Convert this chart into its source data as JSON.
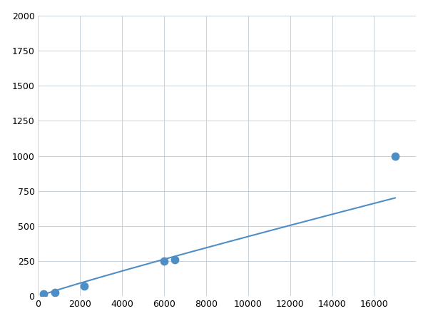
{
  "x": [
    250,
    800,
    2200,
    6000,
    6500,
    17000
  ],
  "y": [
    20,
    30,
    75,
    250,
    260,
    1000
  ],
  "line_color": "#4e8ec5",
  "marker_color": "#4e8ec5",
  "marker_size": 6,
  "line_width": 1.5,
  "xlim": [
    0,
    18000
  ],
  "ylim": [
    0,
    2000
  ],
  "xticks": [
    0,
    2000,
    4000,
    6000,
    8000,
    10000,
    12000,
    14000,
    16000
  ],
  "yticks": [
    0,
    250,
    500,
    750,
    1000,
    1250,
    1500,
    1750,
    2000
  ],
  "grid_color": "#c8d0d8",
  "background_color": "#ffffff",
  "tick_fontsize": 9
}
